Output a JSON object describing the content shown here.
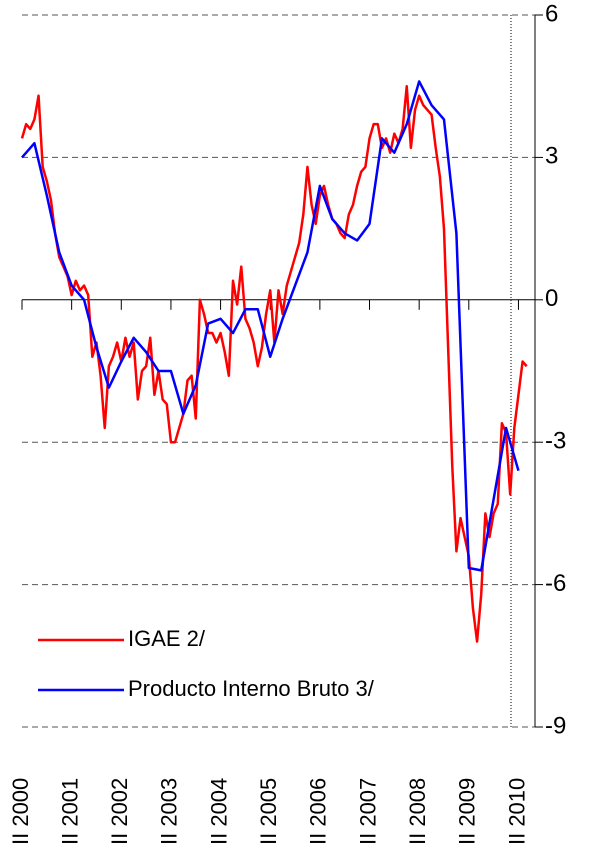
{
  "chart_data": {
    "type": "line",
    "xlim": [
      0,
      124
    ],
    "xticks": [
      {
        "value": 0,
        "label": "II 2000"
      },
      {
        "value": 12,
        "label": "II 2001"
      },
      {
        "value": 24,
        "label": "II 2002"
      },
      {
        "value": 36,
        "label": "II 2003"
      },
      {
        "value": 48,
        "label": "II 2004"
      },
      {
        "value": 60,
        "label": "II 2005"
      },
      {
        "value": 72,
        "label": "II 2006"
      },
      {
        "value": 84,
        "label": "II 2007"
      },
      {
        "value": 96,
        "label": "II 2008"
      },
      {
        "value": 108,
        "label": "II 2009"
      },
      {
        "value": 120,
        "label": "II 2010"
      }
    ],
    "ylim": [
      -9,
      6
    ],
    "yticks": [
      -9,
      -6,
      -3,
      0,
      3,
      6
    ],
    "grid": true,
    "legend": "lower left",
    "series": [
      {
        "name": "IGAE 2/",
        "color": "#ff0000",
        "x": [
          0,
          1,
          2,
          3,
          4,
          5,
          6,
          7,
          8,
          9,
          10,
          11,
          12,
          13,
          14,
          15,
          16,
          17,
          18,
          19,
          20,
          21,
          22,
          23,
          24,
          25,
          26,
          27,
          28,
          29,
          30,
          31,
          32,
          33,
          34,
          35,
          36,
          37,
          38,
          39,
          40,
          41,
          42,
          43,
          44,
          45,
          46,
          47,
          48,
          49,
          50,
          51,
          52,
          53,
          54,
          55,
          56,
          57,
          58,
          59,
          60,
          61,
          62,
          63,
          64,
          65,
          66,
          67,
          68,
          69,
          70,
          71,
          72,
          73,
          74,
          75,
          76,
          77,
          78,
          79,
          80,
          81,
          82,
          83,
          84,
          85,
          86,
          87,
          88,
          89,
          90,
          91,
          92,
          93,
          94,
          95,
          96,
          97,
          98,
          99,
          100,
          101,
          102,
          103,
          104,
          105,
          106,
          107,
          108,
          109,
          110,
          111,
          112,
          113,
          114,
          115,
          116,
          117,
          118,
          119,
          120,
          121,
          122
        ],
        "values": [
          3.4,
          3.7,
          3.6,
          3.8,
          4.3,
          2.8,
          2.5,
          2.1,
          1.4,
          0.9,
          0.7,
          0.5,
          0.1,
          0.4,
          0.2,
          0.3,
          0.1,
          -1.2,
          -0.9,
          -1.6,
          -2.7,
          -1.4,
          -1.2,
          -0.9,
          -1.3,
          -0.8,
          -1.2,
          -0.9,
          -2.1,
          -1.5,
          -1.4,
          -0.8,
          -2.0,
          -1.5,
          -2.1,
          -2.2,
          -3.0,
          -3.0,
          -2.7,
          -2.4,
          -1.7,
          -1.6,
          -2.5,
          0.0,
          -0.3,
          -0.7,
          -0.7,
          -0.9,
          -0.7,
          -1.1,
          -1.6,
          0.4,
          -0.1,
          0.7,
          -0.4,
          -0.6,
          -0.9,
          -1.4,
          -1.0,
          -0.3,
          0.2,
          -0.9,
          0.2,
          -0.3,
          0.3,
          0.6,
          0.9,
          1.2,
          1.8,
          2.8,
          2.0,
          1.6,
          2.2,
          2.4,
          2.0,
          1.7,
          1.6,
          1.4,
          1.3,
          1.8,
          2.0,
          2.4,
          2.7,
          2.8,
          3.4,
          3.7,
          3.7,
          3.2,
          3.4,
          3.1,
          3.5,
          3.3,
          3.6,
          4.5,
          3.2,
          4.0,
          4.3,
          4.1,
          4.0,
          3.9,
          3.2,
          2.6,
          1.5,
          -1.0,
          -3.5,
          -5.3,
          -4.6,
          -5.0,
          -5.4,
          -6.5,
          -7.2,
          -6.2,
          -4.5,
          -5.0,
          -4.5,
          -4.3,
          -2.6,
          -2.8,
          -4.1,
          -2.7,
          -2.0,
          -1.3,
          -1.4
        ]
      },
      {
        "name": "Producto Interno Bruto 3/",
        "color": "#0000ff",
        "x": [
          0,
          3,
          6,
          9,
          12,
          15,
          18,
          21,
          24,
          27,
          30,
          33,
          36,
          39,
          42,
          45,
          48,
          51,
          54,
          57,
          60,
          63,
          66,
          69,
          72,
          75,
          78,
          81,
          84,
          87,
          90,
          93,
          96,
          99,
          102,
          105,
          108,
          111,
          114,
          117,
          120
        ],
        "values": [
          3.0,
          3.3,
          2.2,
          1.0,
          0.3,
          0.0,
          -1.0,
          -1.85,
          -1.3,
          -0.8,
          -1.1,
          -1.5,
          -1.5,
          -2.4,
          -1.8,
          -0.5,
          -0.4,
          -0.7,
          -0.2,
          -0.2,
          -1.2,
          -0.4,
          0.3,
          1.0,
          2.4,
          1.7,
          1.4,
          1.25,
          1.6,
          3.4,
          3.1,
          3.7,
          4.6,
          4.1,
          3.8,
          1.4,
          -5.65,
          -5.7,
          -4.2,
          -2.7,
          -3.6
        ]
      }
    ]
  }
}
